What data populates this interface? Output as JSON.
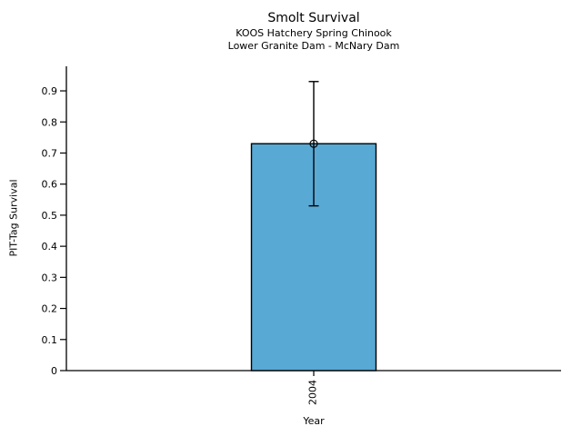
{
  "chart_data": {
    "type": "bar",
    "title": "Smolt Survival",
    "subtitle1": "KOOS Hatchery Spring Chinook",
    "subtitle2": "Lower Granite Dam - McNary Dam",
    "xlabel": "Year",
    "ylabel": "PIT-Tag Survival",
    "categories": [
      "2004"
    ],
    "values": [
      0.73
    ],
    "error_low": [
      0.53
    ],
    "error_high": [
      0.93
    ],
    "ylim": [
      0,
      0.979
    ],
    "ytick_values": [
      0,
      0.1,
      0.2,
      0.3,
      0.4,
      0.5,
      0.6,
      0.7,
      0.8,
      0.9
    ],
    "ytick_labels": [
      "0",
      "0.1",
      "0.2",
      "0.3",
      "0.4",
      "0.5",
      "0.6",
      "0.7",
      "0.8",
      "0.9"
    ],
    "grid": false,
    "legend": "none",
    "marker": "open-circle",
    "colors": {
      "bar_fill": "#58A9D4",
      "bar_edge": "#000000",
      "error_bar": "#000000",
      "axis": "#000000",
      "text": "#000000"
    }
  }
}
